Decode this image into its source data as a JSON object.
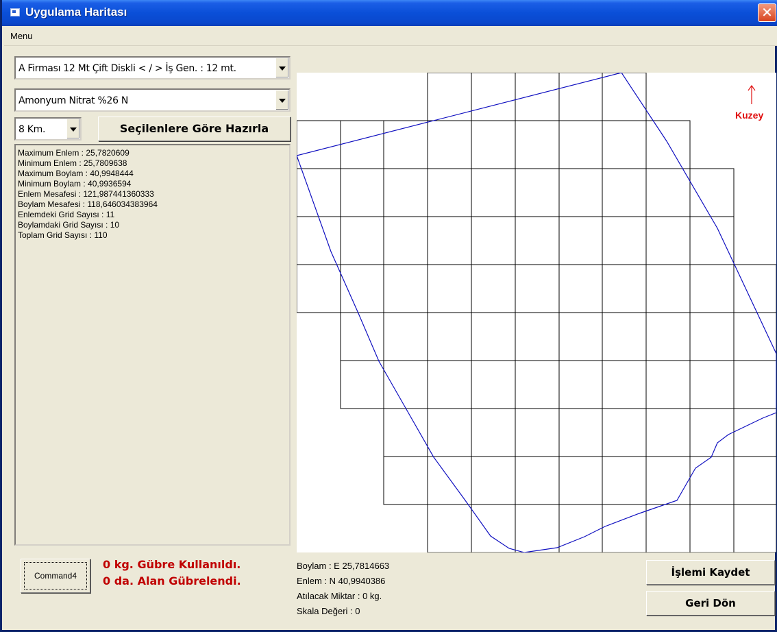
{
  "window": {
    "title": "Uygulama Haritası",
    "close_glyph": "✕"
  },
  "menubar": {
    "menu_label": "Menu"
  },
  "controls": {
    "machine_select": "A Firması 12 Mt Çift Diskli  < / >  İş Gen. : 12 mt.",
    "fertilizer_select": "Amonyum Nitrat %26 N",
    "distance_select": "8 Km.",
    "prepare_button": "Seçilenlere Göre Hazırla"
  },
  "info_lines": [
    "Maximum Enlem : 25,7820609",
    "Minimum Enlem : 25,7809638",
    "Maximum Boylam : 40,9948444",
    "Minimum Boylam : 40,9936594",
    "Enlem Mesafesi : 121,987441360333",
    "Boylam Mesafesi : 118,646034383964",
    "Enlemdeki Grid Sayısı : 11",
    "Boylamdaki Grid Sayısı : 10",
    "Toplam Grid Sayısı : 110"
  ],
  "map": {
    "north_label": "Kuzey",
    "grid_color": "#000000",
    "boundary_color": "#1010c0",
    "north_color": "#e01010"
  },
  "bottom": {
    "command_button": "Command4",
    "status_fertilizer": "0 kg. Gübre Kullanıldı.",
    "status_area": "0 da. Alan Gübrelendi.",
    "boylam": "Boylam : E 25,7814663",
    "enlem": "Enlem : N 40,9940386",
    "amount": "Atılacak Miktar : 0 kg.",
    "scale": "Skala Değeri : 0",
    "save_button": "İşlemi Kaydet",
    "back_button": "Geri Dön"
  }
}
